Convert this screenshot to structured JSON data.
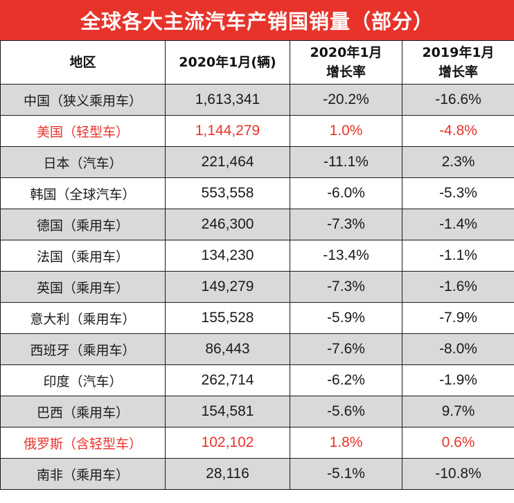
{
  "title": "全球各大主流汽车产销国销量（部分）",
  "headers": {
    "region": "地区",
    "sales": "2020年1月(辆)",
    "growth2020_l1": "2020年1月",
    "growth2020_l2": "增长率",
    "growth2019_l1": "2019年1月",
    "growth2019_l2": "增长率"
  },
  "colors": {
    "title_bg": "#e8332b",
    "highlight_text": "#e8332b",
    "shade_row": "#d9d9d9"
  },
  "rows": [
    {
      "region": "中国（狭义乘用车）",
      "sales": "1,613,341",
      "g2020": "-20.2%",
      "g2019": "-16.6%"
    },
    {
      "region": "美国（轻型车）",
      "sales": "1,144,279",
      "g2020": "1.0%",
      "g2019": "-4.8%"
    },
    {
      "region": "日本（汽车）",
      "sales": "221,464",
      "g2020": "-11.1%",
      "g2019": "2.3%"
    },
    {
      "region": "韩国（全球汽车）",
      "sales": "553,558",
      "g2020": "-6.0%",
      "g2019": "-5.3%"
    },
    {
      "region": "德国（乘用车）",
      "sales": "246,300",
      "g2020": "-7.3%",
      "g2019": "-1.4%"
    },
    {
      "region": "法国（乘用车）",
      "sales": "134,230",
      "g2020": "-13.4%",
      "g2019": "-1.1%"
    },
    {
      "region": "英国（乘用车）",
      "sales": "149,279",
      "g2020": "-7.3%",
      "g2019": "-1.6%"
    },
    {
      "region": "意大利（乘用车）",
      "sales": "155,528",
      "g2020": "-5.9%",
      "g2019": "-7.9%"
    },
    {
      "region": "西班牙（乘用车）",
      "sales": "86,443",
      "g2020": "-7.6%",
      "g2019": "-8.0%"
    },
    {
      "region": "印度（汽车）",
      "sales": "262,714",
      "g2020": "-6.2%",
      "g2019": "-1.9%"
    },
    {
      "region": "巴西（乘用车）",
      "sales": "154,581",
      "g2020": "-5.6%",
      "g2019": "9.7%"
    },
    {
      "region": "俄罗斯（含轻型车）",
      "sales": "102,102",
      "g2020": "1.8%",
      "g2019": "0.6%"
    },
    {
      "region": "南非（乘用车）",
      "sales": "28,116",
      "g2020": "-5.1%",
      "g2019": "-10.8%"
    }
  ]
}
